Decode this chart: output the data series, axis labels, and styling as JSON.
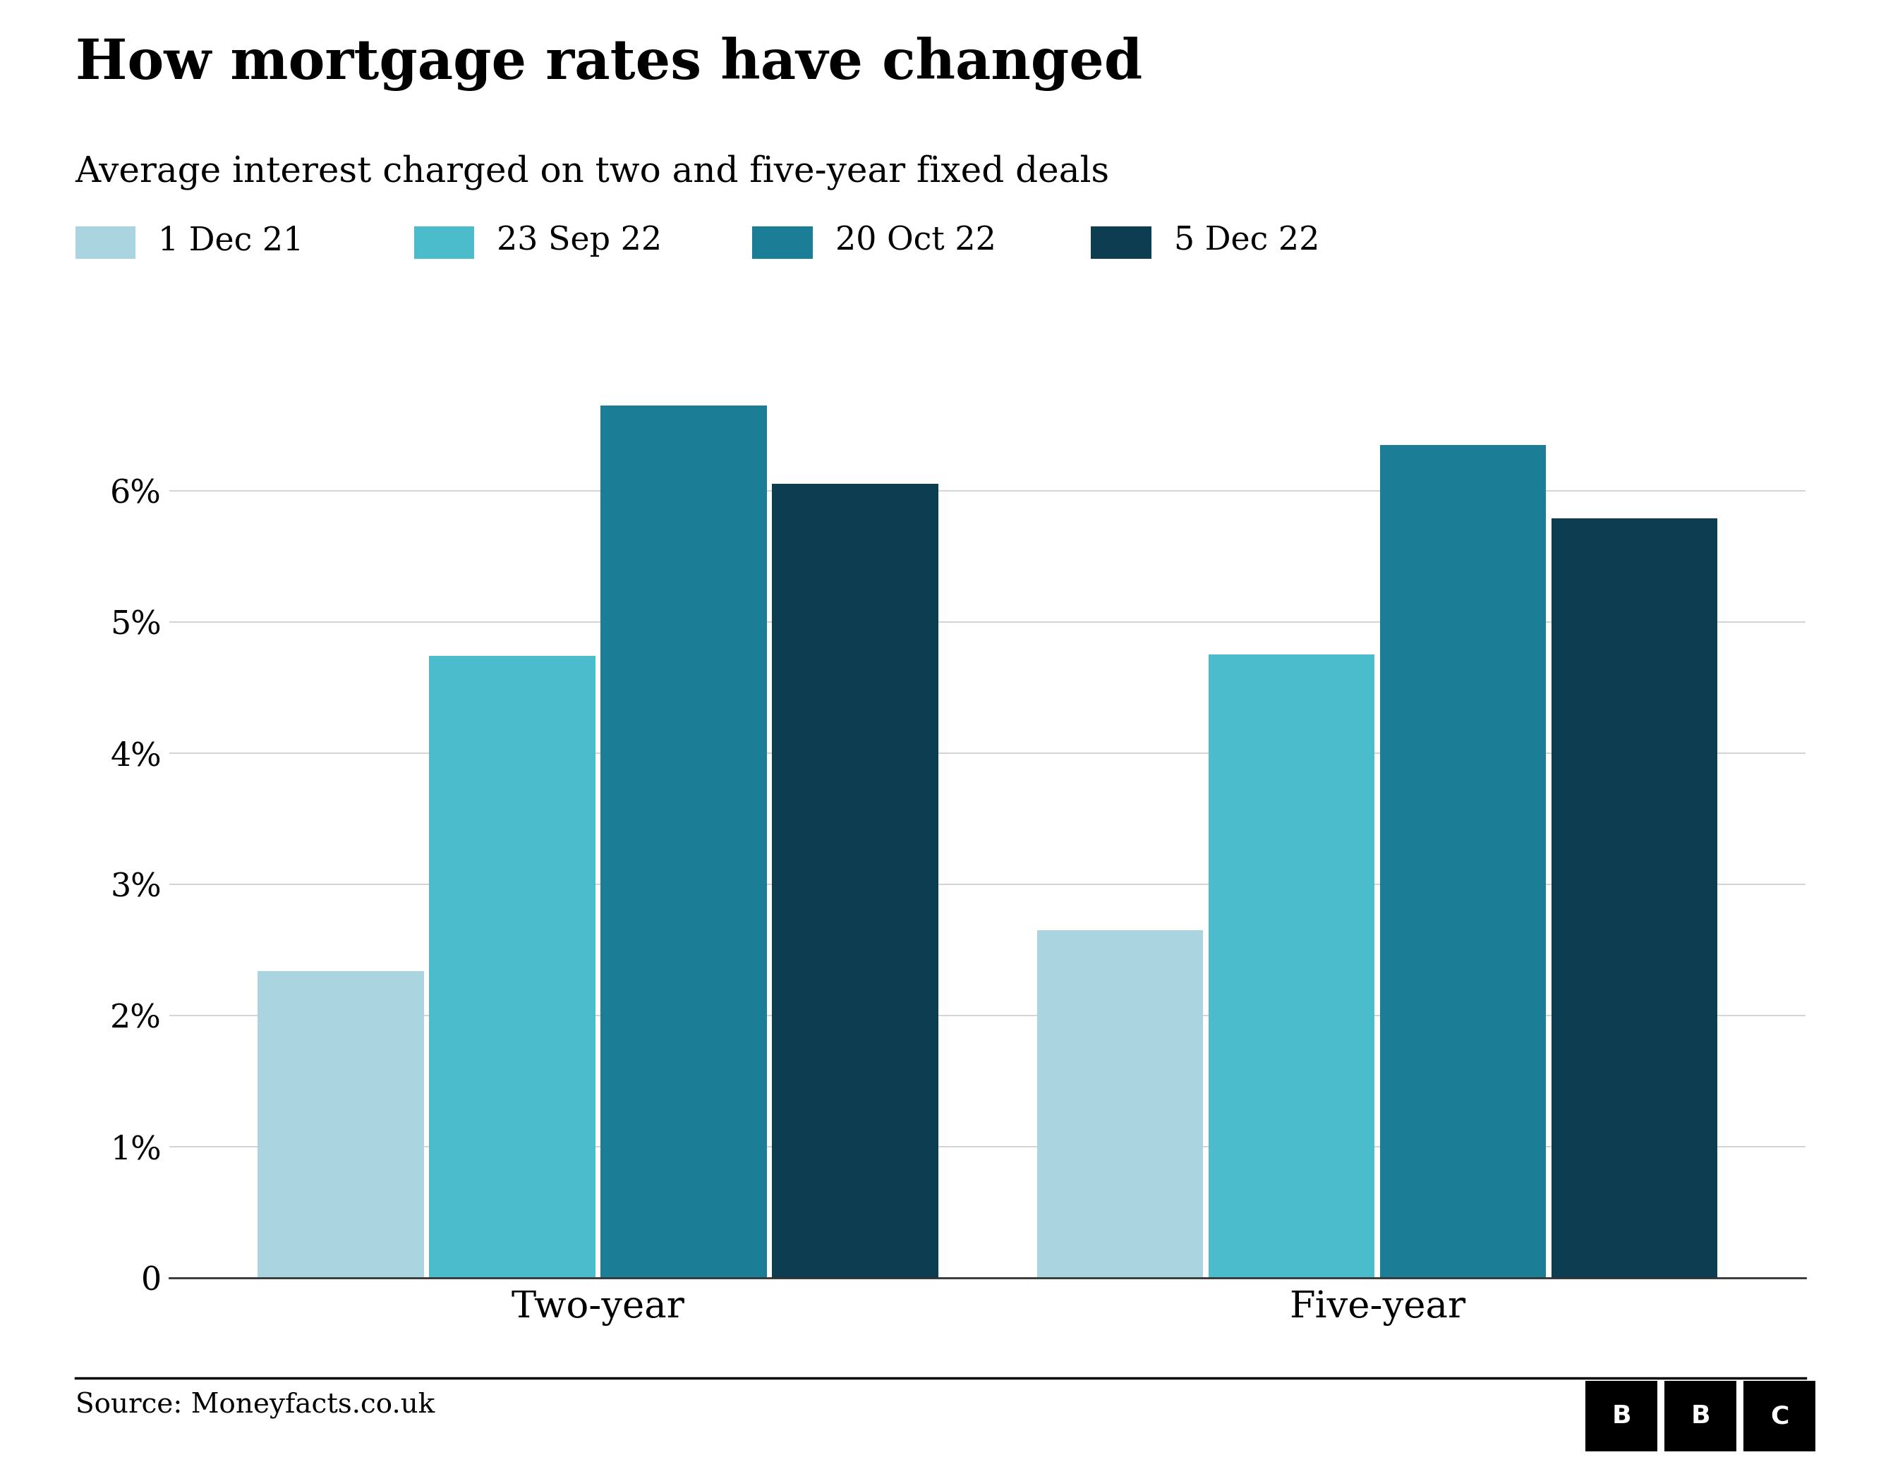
{
  "title": "How mortgage rates have changed",
  "subtitle": "Average interest charged on two and five-year fixed deals",
  "source": "Source: Moneyfacts.co.uk",
  "categories": [
    "Two-year",
    "Five-year"
  ],
  "series": [
    {
      "label": "1 Dec 21",
      "color": "#aad4e0",
      "values": [
        2.34,
        2.65
      ]
    },
    {
      "label": "23 Sep 22",
      "color": "#4bbccc",
      "values": [
        4.74,
        4.75
      ]
    },
    {
      "label": "20 Oct 22",
      "color": "#1b7e96",
      "values": [
        6.65,
        6.35
      ]
    },
    {
      "label": "5 Dec 22",
      "color": "#0d3d50",
      "values": [
        6.05,
        5.79
      ]
    }
  ],
  "ylim": [
    0,
    7.5
  ],
  "yticks": [
    0,
    1,
    2,
    3,
    4,
    5,
    6
  ],
  "ytick_labels": [
    "0",
    "1%",
    "2%",
    "3%",
    "4%",
    "5%",
    "6%"
  ],
  "background_color": "#ffffff",
  "bar_width": 0.22,
  "group_centers": [
    0.0,
    1.0
  ],
  "title_fontsize": 56,
  "subtitle_fontsize": 36,
  "legend_fontsize": 33,
  "tick_fontsize": 33,
  "xtick_fontsize": 38,
  "source_fontsize": 28
}
